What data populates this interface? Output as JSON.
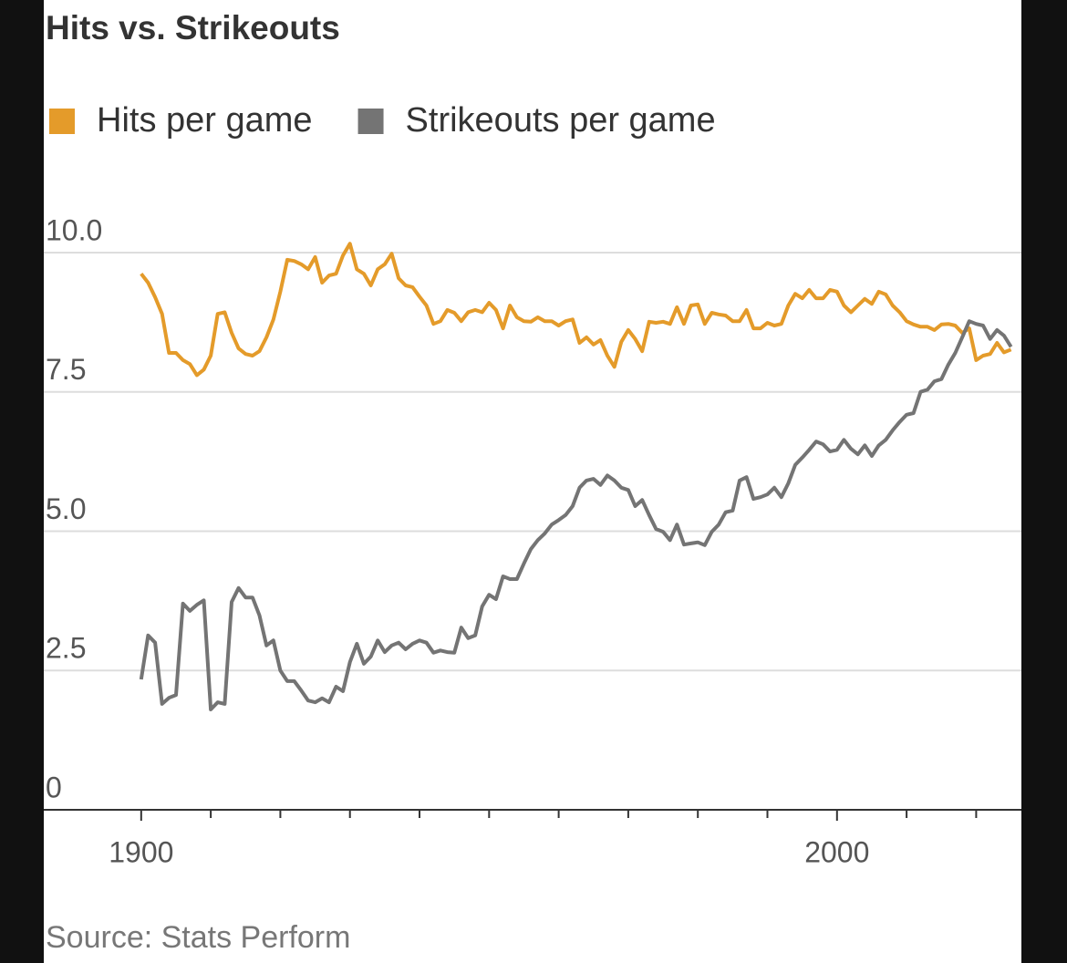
{
  "chart_data": {
    "type": "line",
    "title": "Hits vs. Strikeouts",
    "source": "Source: Stats Perform",
    "x": [
      1900,
      1901,
      1902,
      1903,
      1904,
      1905,
      1906,
      1907,
      1908,
      1909,
      1910,
      1911,
      1912,
      1913,
      1914,
      1915,
      1916,
      1917,
      1918,
      1919,
      1920,
      1921,
      1922,
      1923,
      1924,
      1925,
      1926,
      1927,
      1928,
      1929,
      1930,
      1931,
      1932,
      1933,
      1934,
      1935,
      1936,
      1937,
      1938,
      1939,
      1940,
      1941,
      1942,
      1943,
      1944,
      1945,
      1946,
      1947,
      1948,
      1949,
      1950,
      1951,
      1952,
      1953,
      1954,
      1955,
      1956,
      1957,
      1958,
      1959,
      1960,
      1961,
      1962,
      1963,
      1964,
      1965,
      1966,
      1967,
      1968,
      1969,
      1970,
      1971,
      1972,
      1973,
      1974,
      1975,
      1976,
      1977,
      1978,
      1979,
      1980,
      1981,
      1982,
      1983,
      1984,
      1985,
      1986,
      1987,
      1988,
      1989,
      1990,
      1991,
      1992,
      1993,
      1994,
      1995,
      1996,
      1997,
      1998,
      1999,
      2000,
      2001,
      2002,
      2003,
      2004,
      2005,
      2006,
      2007,
      2008,
      2009,
      2010,
      2011,
      2012,
      2013,
      2014,
      2015,
      2016,
      2017,
      2018,
      2019,
      2020,
      2021,
      2022,
      2023,
      2024,
      2025
    ],
    "series": [
      {
        "name": "Hits per game",
        "color": "#e49b2a",
        "values": [
          9.62,
          9.46,
          9.2,
          8.9,
          8.2,
          8.2,
          8.07,
          8.0,
          7.8,
          7.9,
          8.15,
          8.9,
          8.93,
          8.56,
          8.28,
          8.18,
          8.15,
          8.23,
          8.48,
          8.8,
          9.3,
          9.87,
          9.85,
          9.79,
          9.7,
          9.92,
          9.46,
          9.59,
          9.62,
          9.95,
          10.16,
          9.7,
          9.62,
          9.41,
          9.7,
          9.79,
          9.98,
          9.54,
          9.41,
          9.38,
          9.21,
          9.05,
          8.72,
          8.77,
          8.97,
          8.92,
          8.77,
          8.93,
          8.97,
          8.93,
          9.1,
          8.97,
          8.64,
          9.05,
          8.84,
          8.77,
          8.76,
          8.84,
          8.77,
          8.77,
          8.69,
          8.77,
          8.8,
          8.38,
          8.48,
          8.35,
          8.43,
          8.15,
          7.95,
          8.4,
          8.61,
          8.45,
          8.23,
          8.76,
          8.74,
          8.76,
          8.72,
          9.02,
          8.72,
          9.05,
          9.07,
          8.72,
          8.92,
          8.89,
          8.87,
          8.77,
          8.77,
          8.97,
          8.64,
          8.64,
          8.74,
          8.69,
          8.72,
          9.05,
          9.26,
          9.18,
          9.33,
          9.18,
          9.18,
          9.33,
          9.3,
          9.05,
          8.93,
          9.05,
          9.17,
          9.08,
          9.3,
          9.25,
          9.05,
          8.93,
          8.77,
          8.71,
          8.67,
          8.67,
          8.61,
          8.71,
          8.72,
          8.69,
          8.56,
          8.64,
          8.07,
          8.15,
          8.18,
          8.38,
          8.21,
          8.26
        ]
      },
      {
        "name": "Strikeouts per game",
        "color": "#747474",
        "values": [
          2.34,
          3.13,
          3.0,
          1.9,
          2.01,
          2.06,
          3.7,
          3.57,
          3.68,
          3.76,
          1.8,
          1.93,
          1.9,
          3.73,
          3.98,
          3.81,
          3.81,
          3.49,
          2.95,
          3.04,
          2.5,
          2.31,
          2.31,
          2.14,
          1.96,
          1.93,
          2.0,
          1.93,
          2.21,
          2.13,
          2.65,
          2.98,
          2.62,
          2.75,
          3.04,
          2.83,
          2.95,
          3.0,
          2.88,
          2.98,
          3.04,
          3.0,
          2.82,
          2.86,
          2.83,
          2.82,
          3.27,
          3.08,
          3.13,
          3.65,
          3.86,
          3.78,
          4.19,
          4.14,
          4.14,
          4.42,
          4.68,
          4.84,
          4.96,
          5.12,
          5.2,
          5.29,
          5.45,
          5.78,
          5.91,
          5.94,
          5.83,
          6.0,
          5.91,
          5.78,
          5.74,
          5.45,
          5.56,
          5.29,
          5.04,
          4.99,
          4.84,
          5.12,
          4.76,
          4.78,
          4.8,
          4.75,
          4.99,
          5.12,
          5.34,
          5.37,
          5.91,
          5.97,
          5.58,
          5.61,
          5.66,
          5.78,
          5.61,
          5.86,
          6.19,
          6.32,
          6.46,
          6.61,
          6.56,
          6.43,
          6.46,
          6.64,
          6.48,
          6.38,
          6.54,
          6.35,
          6.54,
          6.64,
          6.81,
          6.96,
          7.09,
          7.12,
          7.5,
          7.54,
          7.69,
          7.73,
          7.99,
          8.2,
          8.48,
          8.77,
          8.72,
          8.69,
          8.45,
          8.61,
          8.51,
          8.31
        ]
      }
    ],
    "xlim": [
      1886,
      2026.5
    ],
    "xticks": [
      1900,
      2000
    ],
    "xminor_ticks": [
      1910,
      1920,
      1930,
      1940,
      1950,
      1960,
      1970,
      1980,
      1990,
      2010,
      2020
    ],
    "ylim": [
      0,
      10.5
    ],
    "yticks": [
      0,
      2.5,
      5,
      7.5,
      10
    ],
    "ytick_labels": [
      "0",
      "2.5",
      "5.0",
      "7.5",
      "10.0"
    ],
    "grid": true
  }
}
